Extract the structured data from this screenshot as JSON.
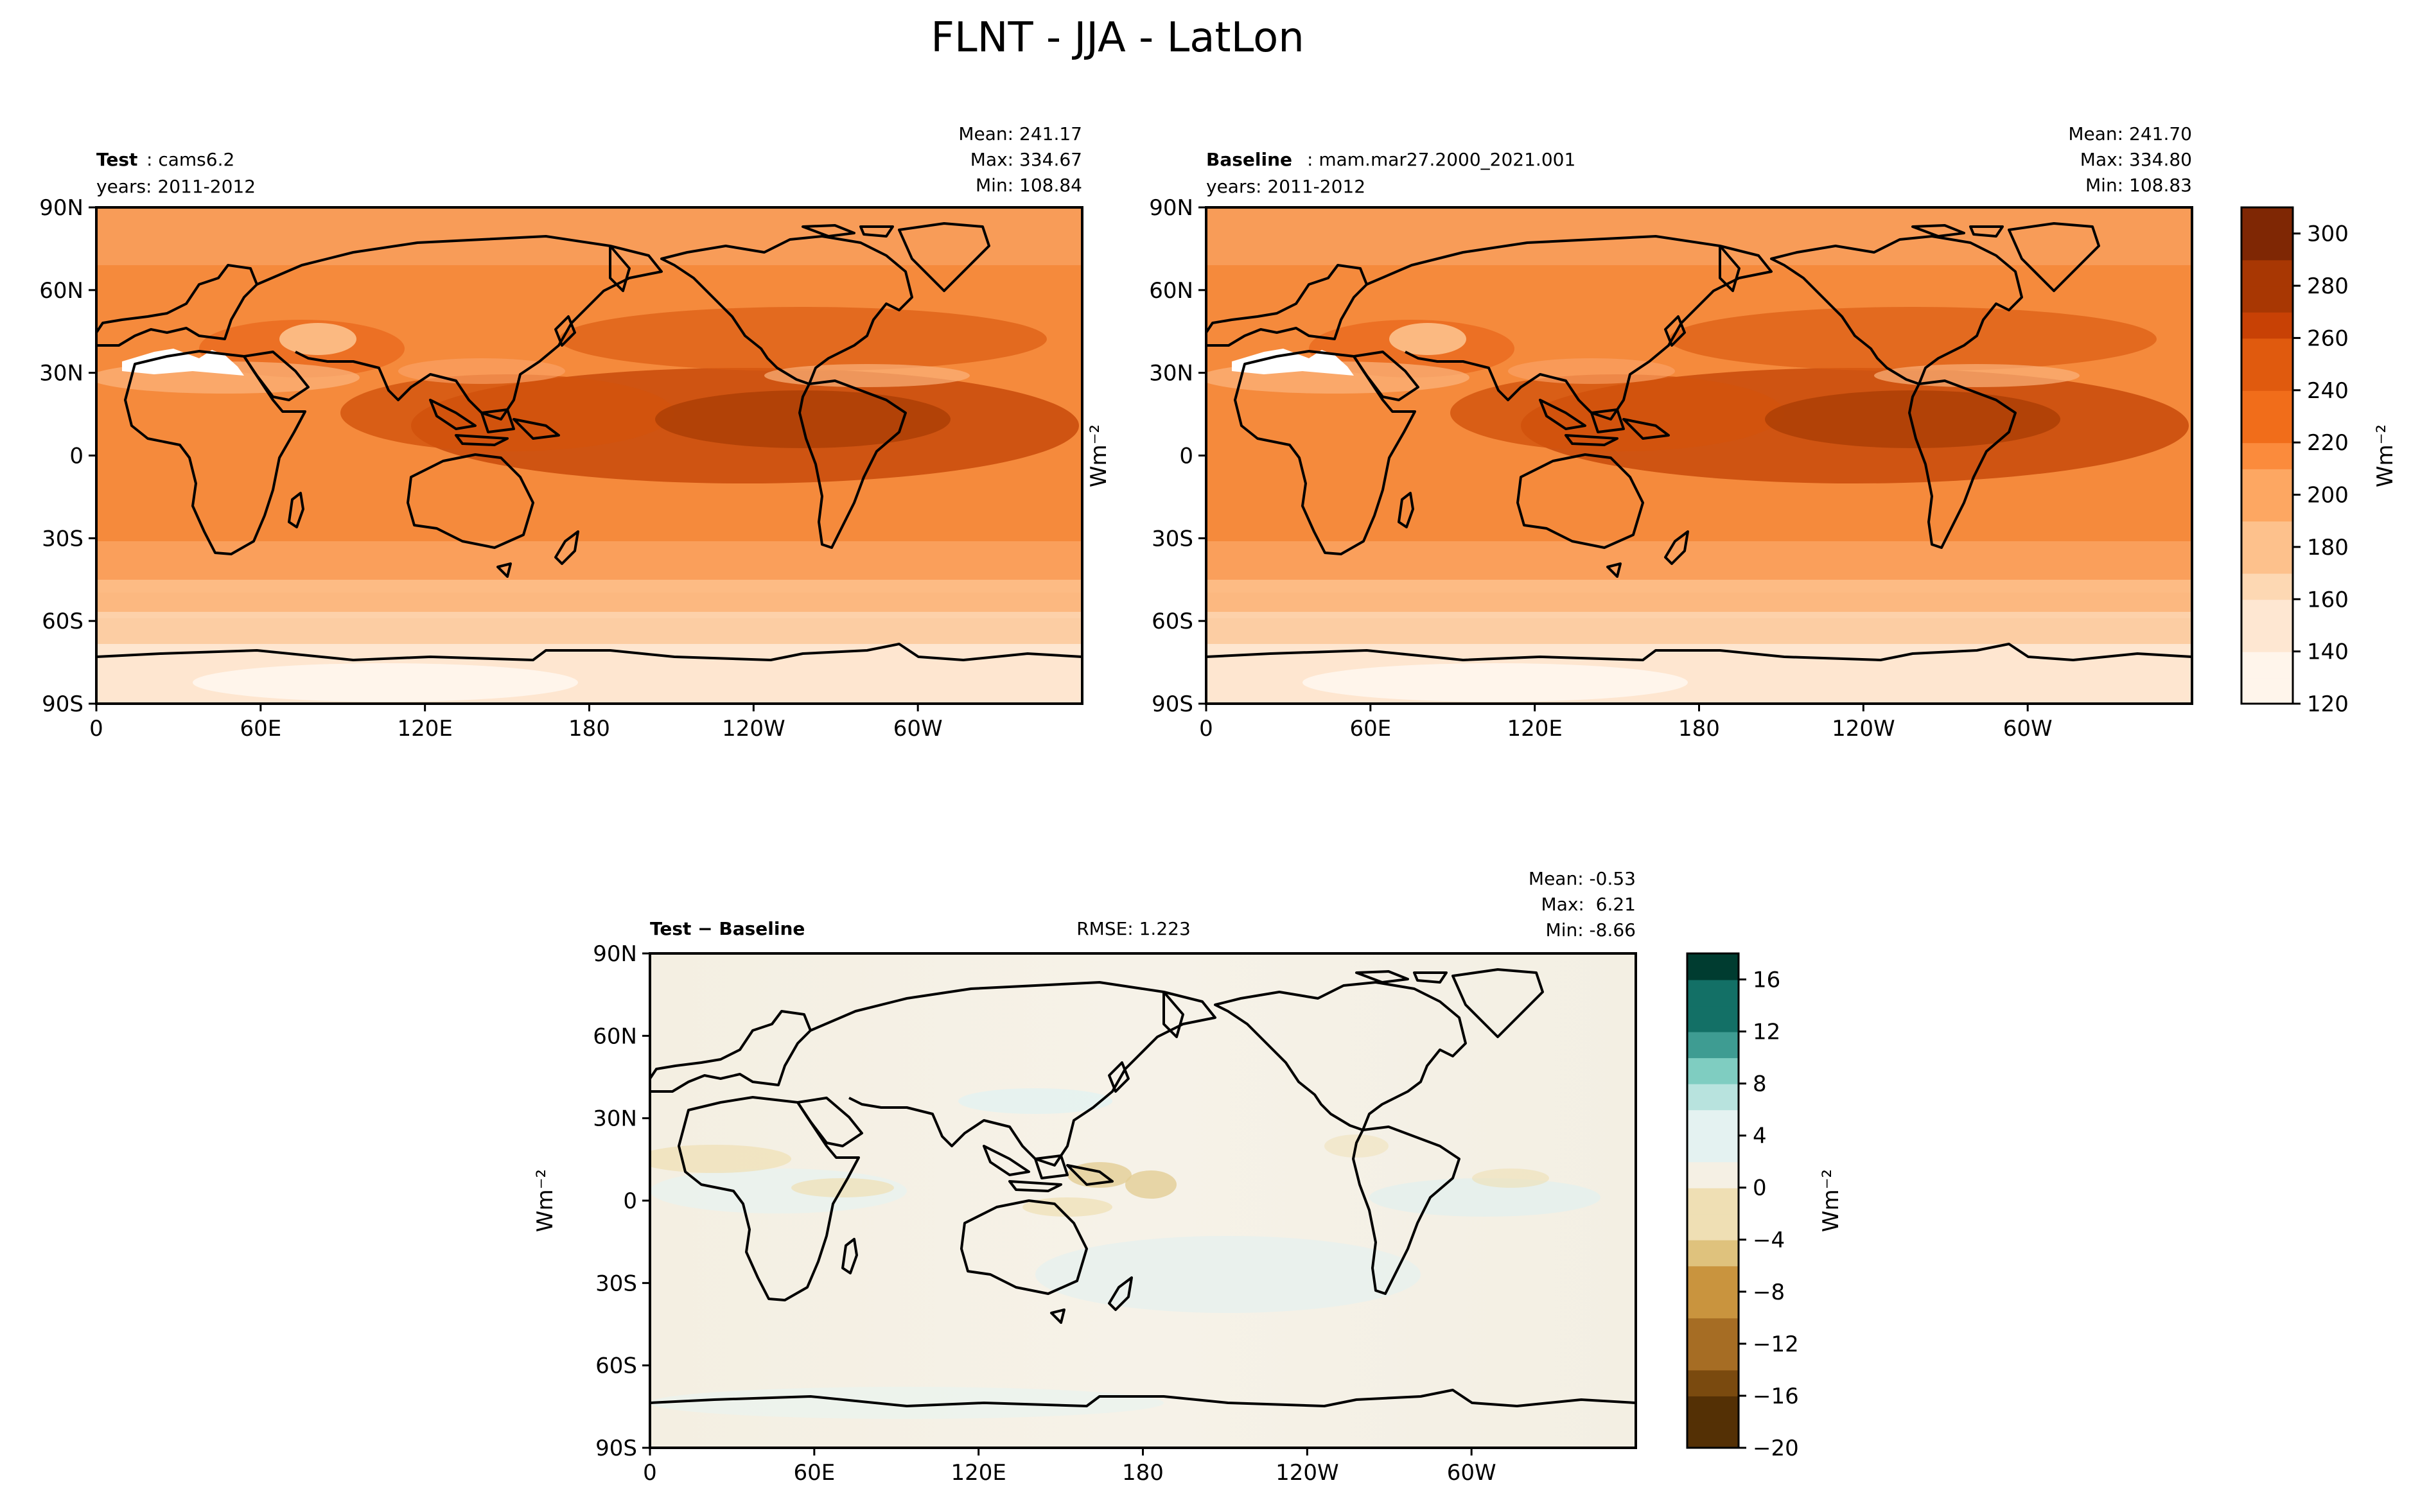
{
  "figure": {
    "title": "FLNT - JJA - LatLon"
  },
  "colors": {
    "oranges": [
      "#fff5eb",
      "#fee7d2",
      "#fdd8b3",
      "#fdc18c",
      "#fda762",
      "#fb8b3c",
      "#f16d1a",
      "#e05a0e",
      "#c84105",
      "#a83703",
      "#7f2704"
    ],
    "brbg": [
      "#543005",
      "#7a4a0f",
      "#a66d24",
      "#c9943e",
      "#dfc27d",
      "#efdfb4",
      "#f5f0e4",
      "#e4f2f1",
      "#b8e3de",
      "#7fcdc1",
      "#3e9c92",
      "#137066",
      "#003c30"
    ],
    "coast": "#000000"
  },
  "chart_data": [
    {
      "type": "heatmap",
      "panel": "Test",
      "left_label_bold": "Test",
      "left_label_rest": ": cams6.2",
      "years": "years: 2011-2012",
      "stats": {
        "mean": "Mean: 241.17",
        "max": "Max: 334.67",
        "min": "Min: 108.84"
      },
      "lon_ticks": [
        "0",
        "60E",
        "120E",
        "180",
        "120W",
        "60W"
      ],
      "lat_ticks": [
        "90N",
        "60N",
        "30N",
        "0",
        "30S",
        "60S",
        "90S"
      ],
      "colormap": "Oranges",
      "clim": [
        120,
        310
      ]
    },
    {
      "type": "heatmap",
      "panel": "Baseline",
      "left_label_bold": "Baseline",
      "left_label_rest": ": mam.mar27.2000_2021.001",
      "years": "years: 2011-2012",
      "stats": {
        "mean": "Mean: 241.70",
        "max": "Max: 334.80",
        "min": "Min: 108.83"
      },
      "lon_ticks": [
        "0",
        "60E",
        "120E",
        "180",
        "120W",
        "60W"
      ],
      "lat_ticks": [
        "90N",
        "60N",
        "30N",
        "0",
        "30S",
        "60S",
        "90S"
      ],
      "colormap": "Oranges",
      "clim": [
        120,
        310
      ],
      "colorbar": {
        "ticks": [
          "120",
          "140",
          "160",
          "180",
          "200",
          "220",
          "240",
          "260",
          "280",
          "300"
        ],
        "unit_label": "Wm⁻²"
      }
    },
    {
      "type": "heatmap",
      "panel": "Test - Baseline",
      "left_label_bold": "Test − Baseline",
      "rmse": "RMSE: 1.223",
      "stats": {
        "mean": "Mean: -0.53",
        "max": "Max:  6.21",
        "min": "Min: -8.66"
      },
      "lon_ticks": [
        "0",
        "60E",
        "120E",
        "180",
        "120W",
        "60W"
      ],
      "lat_ticks": [
        "90N",
        "60N",
        "30N",
        "0",
        "30S",
        "60S",
        "90S"
      ],
      "colormap": "BrBG",
      "clim": [
        -20,
        18
      ],
      "colorbar": {
        "ticks": [
          "16",
          "12",
          "8",
          "4",
          "0",
          "−4",
          "−8",
          "−12",
          "−16",
          "−20"
        ],
        "unit_label": "Wm⁻²"
      },
      "ylabel": "Wm⁻²"
    }
  ],
  "shared_ylabel": "Wm⁻²"
}
